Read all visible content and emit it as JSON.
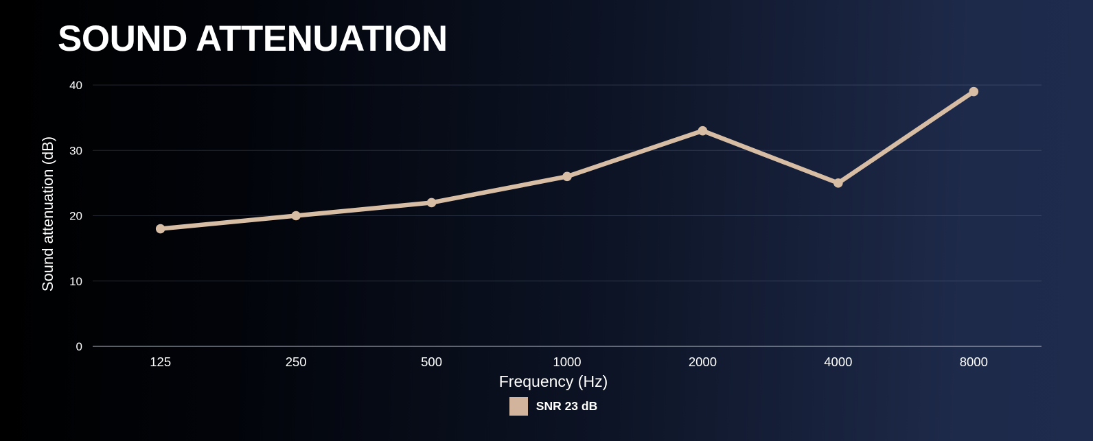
{
  "page": {
    "background_left": "#000000",
    "background_right": "#1e2a4a",
    "text_color": "#ffffff"
  },
  "chart_data": {
    "type": "line",
    "title": "SOUND ATTENUATION",
    "categories": [
      "125",
      "250",
      "500",
      "1000",
      "2000",
      "4000",
      "8000"
    ],
    "series": [
      {
        "name": "SNR 23 dB",
        "values": [
          18,
          20,
          22,
          26,
          33,
          25,
          39
        ],
        "color": "#d8bda5",
        "marker_color": "#d8bda5"
      }
    ],
    "xlabel": "Frequency (Hz)",
    "ylabel": "Sound attenuation (dB)",
    "ylim": [
      0,
      40
    ],
    "yticks": [
      0,
      10,
      20,
      30,
      40
    ],
    "grid": true,
    "gridline_color": "rgba(150,164,196,0.22)",
    "baseline_color": "rgba(200,206,218,0.6)",
    "legend_position": "bottom",
    "legend_swatch_color": "#d2b49c"
  }
}
